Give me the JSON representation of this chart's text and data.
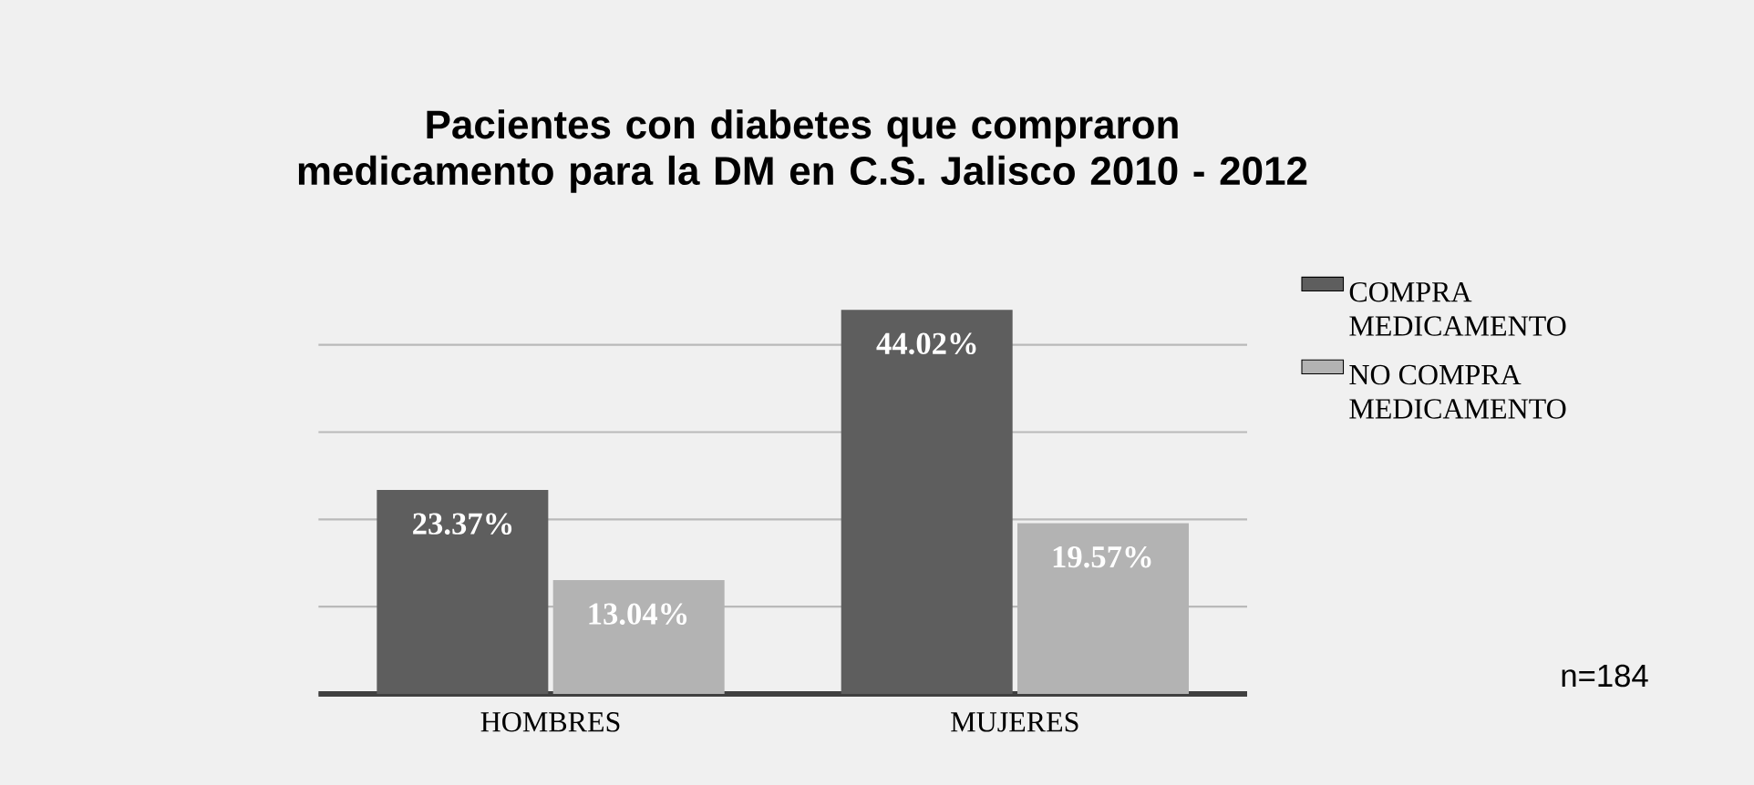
{
  "chart_data": {
    "type": "bar",
    "title": "Pacientes con diabetes que compraron medicamento para la DM en C.S. Jalisco 2010 - 2012",
    "categories": [
      "HOMBRES",
      "MUJERES"
    ],
    "series": [
      {
        "name": "COMPRA MEDICAMENTO",
        "color": "#5e5e5e",
        "values": [
          23.37,
          44.02
        ],
        "value_labels": [
          "23.37%",
          "44.02%"
        ]
      },
      {
        "name": "NO COMPRA MEDICAMENTO",
        "color": "#b3b3b3",
        "values": [
          13.04,
          19.57
        ],
        "value_labels": [
          "13.04%",
          "19.57%"
        ]
      }
    ],
    "tick_labels": "x",
    "grid": "y",
    "legend": "right",
    "annotations": [
      "n=184"
    ]
  }
}
